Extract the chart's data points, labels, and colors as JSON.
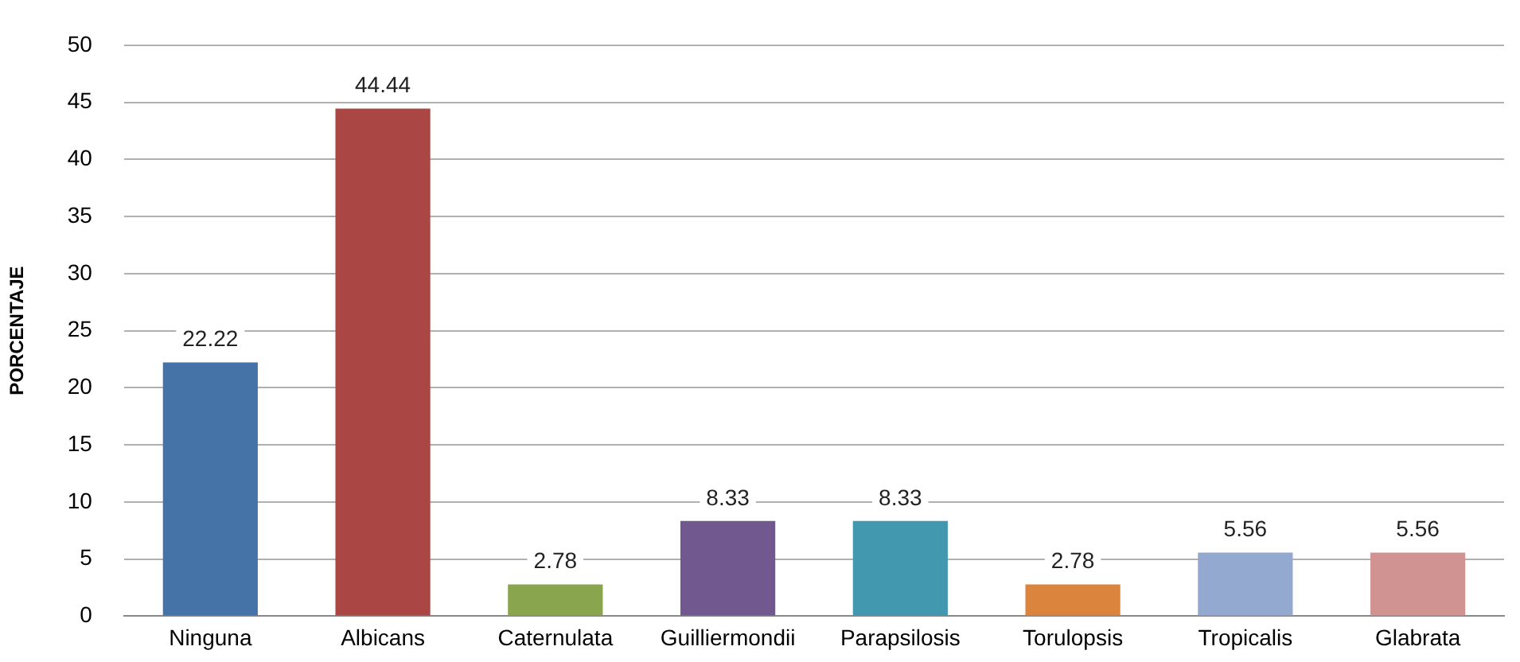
{
  "chart_data": {
    "type": "bar",
    "ylabel": "PORCENTAJE",
    "categories": [
      "Ninguna",
      "Albicans",
      "Caternulata",
      "Guilliermondii",
      "Parapsilosis",
      "Torulopsis",
      "Tropicalis",
      "Glabrata"
    ],
    "values": [
      22.22,
      44.44,
      2.78,
      8.33,
      8.33,
      2.78,
      5.56,
      5.56
    ],
    "colors": [
      "#4572a7",
      "#aa4643",
      "#89a54e",
      "#71588f",
      "#4198af",
      "#db843d",
      "#93a9cf",
      "#d19392"
    ],
    "ylim": [
      0,
      50
    ],
    "yticks": [
      0,
      5,
      10,
      15,
      20,
      25,
      30,
      35,
      40,
      45,
      50
    ],
    "grid": "y",
    "data_labels": true,
    "legend": false
  }
}
